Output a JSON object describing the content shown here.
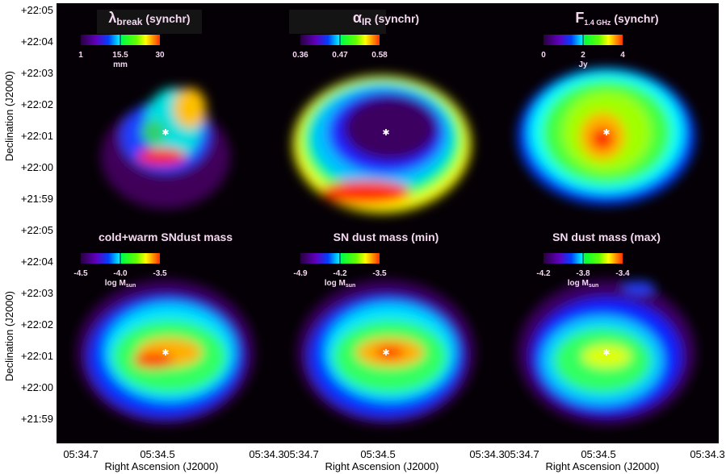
{
  "chart_data": {
    "type": "heatmap",
    "xlabel": "Right Ascension (J2000)",
    "ylabel": "Declination (J2000)",
    "x_ticks": [
      "05:34.7",
      "05:34.5",
      "05:34.3"
    ],
    "y_ticks": [
      "+22:05",
      "+22:04",
      "+22:03",
      "+22:02",
      "+22:01",
      "+22:00",
      "+21:59"
    ],
    "colormap": [
      "#3a0050",
      "#6a00c8",
      "#0030ff",
      "#00ffff",
      "#00ff00",
      "#ffff00",
      "#ff0000"
    ],
    "panels": [
      {
        "title": "λ",
        "title_sub": "break",
        "title_rest": " (synchr)",
        "ticks": [
          "1",
          "15.5",
          "30"
        ],
        "unit": "mm",
        "unit_sub": ""
      },
      {
        "title": "α",
        "title_sub": "IR",
        "title_rest": " (synchr)",
        "ticks": [
          "0.36",
          "0.47",
          "0.58"
        ],
        "unit": "",
        "unit_sub": ""
      },
      {
        "title": "F",
        "title_sub": "1.4 GHz",
        "title_rest": " (synchr)",
        "ticks": [
          "0",
          "2",
          "4"
        ],
        "unit": "Jy",
        "unit_sub": ""
      },
      {
        "title": "cold+warm SNdust mass",
        "title_sub": "",
        "title_rest": "",
        "ticks": [
          "-4.5",
          "-4.0",
          "-3.5"
        ],
        "unit": "log M",
        "unit_sub": "sun"
      },
      {
        "title": "SN dust mass (min)",
        "title_sub": "",
        "title_rest": "",
        "ticks": [
          "-4.9",
          "-4.2",
          "-3.5"
        ],
        "unit": "log M",
        "unit_sub": "sun"
      },
      {
        "title": "SN dust mass (max)",
        "title_sub": "",
        "title_rest": "",
        "ticks": [
          "-4.2",
          "-3.8",
          "-3.4"
        ],
        "unit": "log M",
        "unit_sub": "sun"
      }
    ]
  }
}
